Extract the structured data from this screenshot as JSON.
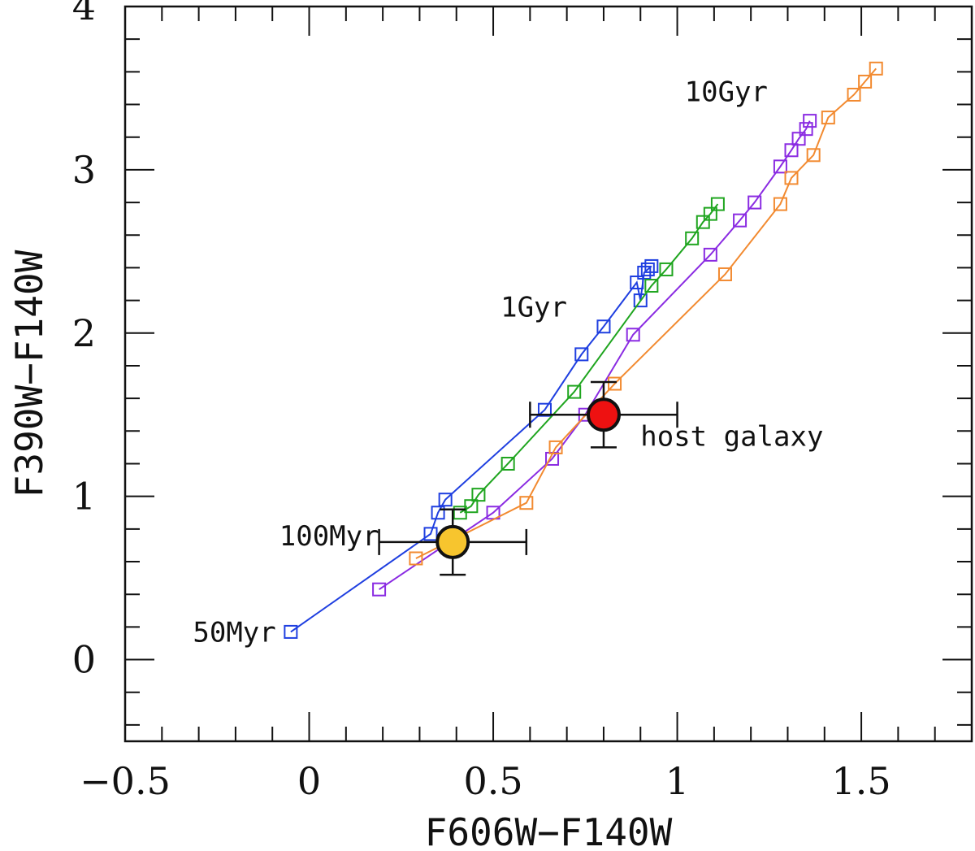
{
  "chart_data": {
    "type": "scatter",
    "title": "",
    "xlabel": "F606W−F140W",
    "ylabel": "F390W−F140W",
    "xlim": [
      -0.5,
      1.8
    ],
    "ylim": [
      -0.5,
      4.0
    ],
    "x_ticks": [
      -0.5,
      0,
      0.5,
      1,
      1.5
    ],
    "x_tick_labels": [
      "−0.5",
      "0",
      "0.5",
      "1",
      "1.5"
    ],
    "y_ticks": [
      0,
      1,
      2,
      3,
      4
    ],
    "y_tick_labels": [
      "0",
      "1",
      "2",
      "3",
      "4"
    ],
    "grid": false,
    "series": [
      {
        "name": "blue track",
        "color": "#1f3fe0",
        "x": [
          -0.05,
          0.33,
          0.35,
          0.37,
          0.64,
          0.74,
          0.8,
          0.89,
          0.9,
          0.91,
          0.92,
          0.93
        ],
        "y": [
          0.17,
          0.77,
          0.9,
          0.98,
          1.53,
          1.87,
          2.04,
          2.31,
          2.2,
          2.37,
          2.39,
          2.41
        ]
      },
      {
        "name": "green track",
        "color": "#1fa51f",
        "x": [
          0.41,
          0.44,
          0.46,
          0.54,
          0.72,
          0.93,
          0.97,
          1.04,
          1.07,
          1.09,
          1.11
        ],
        "y": [
          0.9,
          0.94,
          1.01,
          1.2,
          1.64,
          2.29,
          2.39,
          2.58,
          2.68,
          2.73,
          2.79
        ]
      },
      {
        "name": "purple track",
        "color": "#8a2be2",
        "x": [
          0.19,
          0.5,
          0.66,
          0.75,
          0.88,
          1.09,
          1.17,
          1.21,
          1.28,
          1.31,
          1.33,
          1.35,
          1.36
        ],
        "y": [
          0.43,
          0.9,
          1.23,
          1.5,
          1.99,
          2.48,
          2.69,
          2.8,
          3.02,
          3.12,
          3.19,
          3.25,
          3.3
        ]
      },
      {
        "name": "orange track",
        "color": "#f28a30",
        "x": [
          0.29,
          0.59,
          0.67,
          0.83,
          1.13,
          1.28,
          1.31,
          1.37,
          1.41,
          1.48,
          1.51,
          1.54
        ],
        "y": [
          0.62,
          0.96,
          1.3,
          1.69,
          2.36,
          2.79,
          2.95,
          3.09,
          3.32,
          3.46,
          3.54,
          3.62
        ]
      }
    ],
    "measurements": [
      {
        "name": "host galaxy",
        "x": 0.8,
        "y": 1.5,
        "xerr": 0.2,
        "yerr": 0.2,
        "color": "#ee1111"
      },
      {
        "name": "100Myr source",
        "x": 0.39,
        "y": 0.72,
        "xerr": 0.2,
        "yerr": 0.2,
        "color": "#f7c52e"
      }
    ],
    "annotations": [
      {
        "text": "10Gyr",
        "x": 1.02,
        "y": 3.42,
        "anchor": "start"
      },
      {
        "text": "1Gyr",
        "x": 0.52,
        "y": 2.1,
        "anchor": "start"
      },
      {
        "text": "host galaxy",
        "x": 0.9,
        "y": 1.31,
        "anchor": "start"
      },
      {
        "text": "100Myr",
        "x": 0.19,
        "y": 0.7,
        "anchor": "end"
      },
      {
        "text": "50Myr",
        "x": -0.09,
        "y": 0.11,
        "anchor": "end"
      }
    ]
  }
}
